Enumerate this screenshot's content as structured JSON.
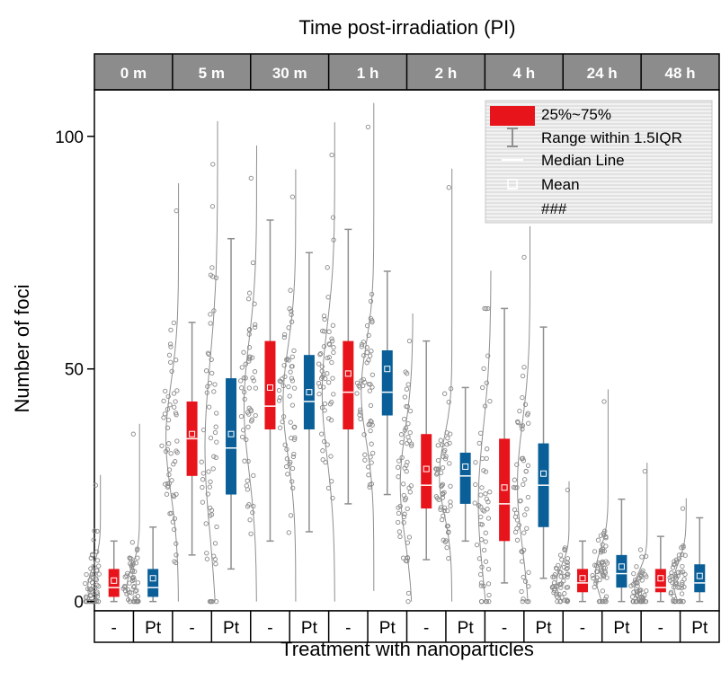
{
  "chart_data": {
    "type": "box",
    "title": "Time post-irradiation (PI)",
    "xlabel": "Treatment with nanoparticles",
    "ylabel": "Number of foci",
    "ylim": [
      -2,
      110
    ],
    "yticks": [
      0,
      50,
      100
    ],
    "time_groups": [
      "0 m",
      "5 m",
      "30 m",
      "1 h",
      "2 h",
      "4 h",
      "24 h",
      "48 h"
    ],
    "treatments": [
      "-",
      "Pt",
      "-",
      "Pt",
      "-",
      "Pt",
      "-",
      "Pt",
      "-",
      "Pt",
      "-",
      "Pt",
      "-",
      "Pt",
      "-",
      "Pt"
    ],
    "colors": {
      "none": "#e8141b",
      "Pt": "#0a5f98",
      "header": "#8c8c8c",
      "points": "#8a8a8a"
    },
    "legend": {
      "position": "top-right",
      "entries": [
        "25%~75%",
        "Range within 1.5IQR",
        "Median Line",
        "Mean",
        "###"
      ]
    },
    "series": [
      {
        "time": "0 m",
        "treatment": "-",
        "q1": 1,
        "median": 3,
        "q3": 7,
        "whisker_low": 0,
        "whisker_high": 13,
        "mean": 4.5,
        "max_point": 25
      },
      {
        "time": "0 m",
        "treatment": "Pt",
        "q1": 1,
        "median": 3,
        "q3": 7,
        "whisker_low": 0,
        "whisker_high": 16,
        "mean": 5,
        "max_point": 36
      },
      {
        "time": "5 m",
        "treatment": "-",
        "q1": 27,
        "median": 35,
        "q3": 43,
        "whisker_low": 10,
        "whisker_high": 60,
        "mean": 36,
        "max_point": 84
      },
      {
        "time": "5 m",
        "treatment": "Pt",
        "q1": 23,
        "median": 33,
        "q3": 48,
        "whisker_low": 7,
        "whisker_high": 78,
        "mean": 36,
        "max_point": 94
      },
      {
        "time": "30 m",
        "treatment": "-",
        "q1": 37,
        "median": 42,
        "q3": 56,
        "whisker_low": 13,
        "whisker_high": 82,
        "mean": 46,
        "max_point": 91
      },
      {
        "time": "30 m",
        "treatment": "Pt",
        "q1": 37,
        "median": 43,
        "q3": 53,
        "whisker_low": 15,
        "whisker_high": 75,
        "mean": 45,
        "max_point": 87
      },
      {
        "time": "1 h",
        "treatment": "-",
        "q1": 37,
        "median": 45,
        "q3": 56,
        "whisker_low": 21,
        "whisker_high": 80,
        "mean": 49,
        "max_point": 96
      },
      {
        "time": "1 h",
        "treatment": "Pt",
        "q1": 40,
        "median": 45,
        "q3": 54,
        "whisker_low": 23,
        "whisker_high": 71,
        "mean": 50,
        "max_point": 102
      },
      {
        "time": "2 h",
        "treatment": "-",
        "q1": 20,
        "median": 25,
        "q3": 36,
        "whisker_low": 9,
        "whisker_high": 56,
        "mean": 28.5,
        "max_point": 56
      },
      {
        "time": "2 h",
        "treatment": "Pt",
        "q1": 21,
        "median": 27,
        "q3": 32,
        "whisker_low": 13,
        "whisker_high": 46,
        "mean": 29,
        "max_point": 89
      },
      {
        "time": "4 h",
        "treatment": "-",
        "q1": 13,
        "median": 21,
        "q3": 35,
        "whisker_low": 4,
        "whisker_high": 63,
        "mean": 24.5,
        "max_point": 63
      },
      {
        "time": "4 h",
        "treatment": "Pt",
        "q1": 16,
        "median": 25,
        "q3": 34,
        "whisker_low": 5,
        "whisker_high": 59,
        "mean": 27.5,
        "max_point": 74
      },
      {
        "time": "24 h",
        "treatment": "-",
        "q1": 2,
        "median": 4,
        "q3": 7,
        "whisker_low": 0,
        "whisker_high": 13,
        "mean": 5,
        "max_point": 24
      },
      {
        "time": "24 h",
        "treatment": "Pt",
        "q1": 3,
        "median": 6,
        "q3": 10,
        "whisker_low": 0,
        "whisker_high": 22,
        "mean": 7.5,
        "max_point": 43
      },
      {
        "time": "48 h",
        "treatment": "-",
        "q1": 2,
        "median": 3,
        "q3": 7,
        "whisker_low": 0,
        "whisker_high": 14,
        "mean": 5,
        "max_point": 28
      },
      {
        "time": "48 h",
        "treatment": "Pt",
        "q1": 2,
        "median": 4,
        "q3": 8,
        "whisker_low": 0,
        "whisker_high": 18,
        "mean": 5.5,
        "max_point": 20
      }
    ]
  }
}
